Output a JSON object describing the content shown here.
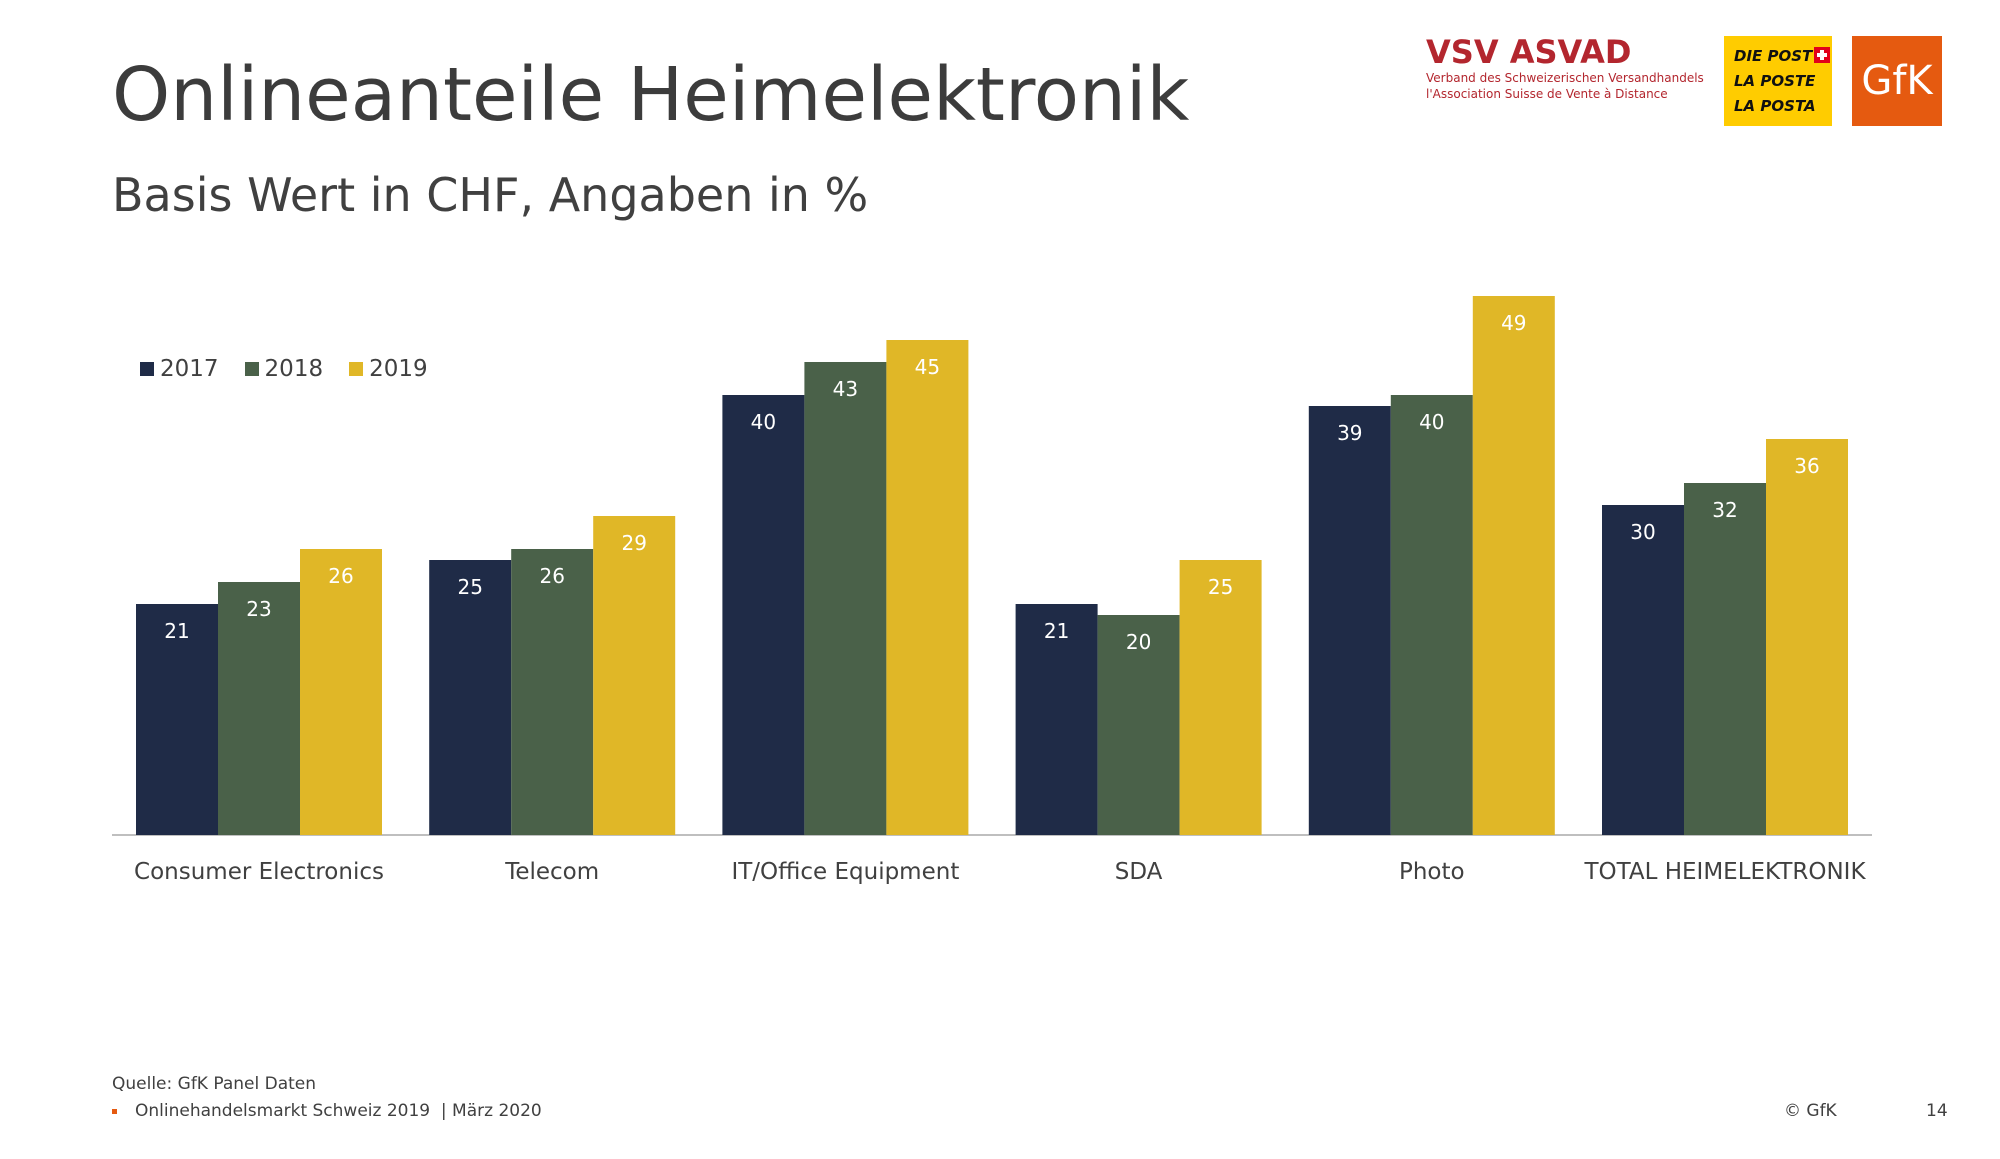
{
  "header": {
    "title": "Onlineanteile Heimelektronik",
    "subtitle": "Basis Wert in CHF, Angaben in %"
  },
  "logos": {
    "vsv": {
      "name": "VSV ASVAD",
      "line1": "Verband des Schweizerischen Versandhandels",
      "line2": "l'Association Suisse de Vente à Distance",
      "color": "#b3262e"
    },
    "post": {
      "line1": "DIE POST",
      "line2": "LA POSTE",
      "line3": "LA POSTA",
      "color": "#ffcc00"
    },
    "gfk": {
      "text": "GfK",
      "color": "#e55a10"
    }
  },
  "chart_data": {
    "type": "bar",
    "categories": [
      "Consumer Electronics",
      "Telecom",
      "IT/Office Equipment",
      "SDA",
      "Photo",
      "TOTAL HEIMELEKTRONIK"
    ],
    "series": [
      {
        "name": "2017",
        "color": "#1f2b47",
        "values": [
          21,
          25,
          40,
          21,
          39,
          30
        ]
      },
      {
        "name": "2018",
        "color": "#4a6149",
        "values": [
          23,
          26,
          43,
          20,
          40,
          32
        ]
      },
      {
        "name": "2019",
        "color": "#e0b727",
        "values": [
          26,
          29,
          45,
          25,
          49,
          36
        ]
      }
    ],
    "ylim": [
      0,
      55
    ],
    "grid": false,
    "legend_position": "top-left",
    "data_labels": true
  },
  "footer": {
    "source": "Quelle: GfK Panel Daten",
    "report": "Onlinehandelsmarkt Schweiz 2019",
    "date": "| März 2020",
    "copyright": "© GfK",
    "page": "14"
  }
}
